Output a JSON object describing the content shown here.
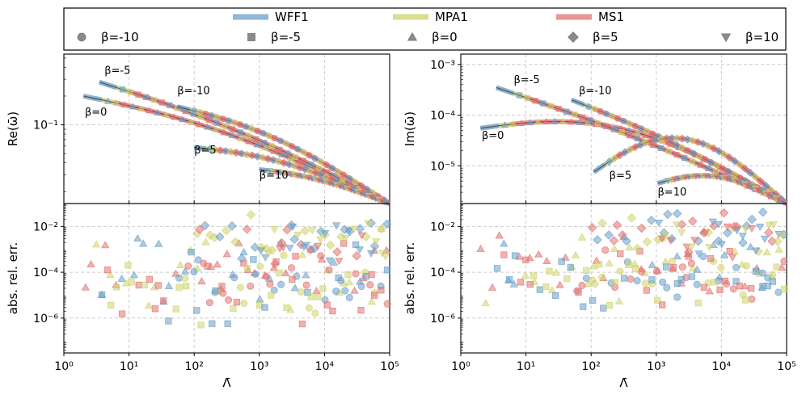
{
  "colors": {
    "WFF1": "#6a9fc9",
    "MPA1": "#cfd36c",
    "MS1": "#e07270",
    "fit": "#555555",
    "marker_gray": "#777777"
  },
  "legend": {
    "eos": [
      {
        "label": "WFF1",
        "key": "WFF1"
      },
      {
        "label": "MPA1",
        "key": "MPA1"
      },
      {
        "label": "MS1",
        "key": "MS1"
      }
    ],
    "beta": [
      {
        "label": "β=-10",
        "marker": "circle"
      },
      {
        "label": "β=-5",
        "marker": "square"
      },
      {
        "label": "β=0",
        "marker": "triangle-up"
      },
      {
        "label": "β=5",
        "marker": "diamond"
      },
      {
        "label": "β=10",
        "marker": "triangle-down"
      }
    ]
  },
  "chart_data": [
    {
      "panel": "top-left",
      "type": "line",
      "ylabel": "Re(ω̄)",
      "yscale": "log",
      "xscale": "log",
      "xlim": [
        1,
        100000
      ],
      "ylim": [
        0.015,
        0.55
      ],
      "yticks": [
        {
          "value": 0.1,
          "label": "10⁻¹"
        }
      ],
      "series": [
        {
          "name": "β=0",
          "label": "β=0",
          "label_at": [
            2.1,
            0.125
          ],
          "x0": 2,
          "x1": 100000,
          "y0": 0.2,
          "y1": 0.015,
          "arc": 0.15
        },
        {
          "name": "β=-5",
          "label": "β=-5",
          "label_at": [
            4.2,
            0.34
          ],
          "x0": 3.5,
          "x1": 100000,
          "y0": 0.28,
          "y1": 0.015,
          "arc": 0.1
        },
        {
          "name": "β=-10",
          "label": "β=-10",
          "label_at": [
            55,
            0.21
          ],
          "x0": 55,
          "x1": 100000,
          "y0": 0.155,
          "y1": 0.015,
          "arc": 0.15
        },
        {
          "name": "β=5",
          "label": "β=5",
          "label_at": [
            100,
            0.05
          ],
          "x0": 100,
          "x1": 100000,
          "y0": 0.058,
          "y1": 0.015,
          "arc": 0.12
        },
        {
          "name": "β=10",
          "label": "β=10",
          "label_at": [
            1000,
            0.0275
          ],
          "x0": 1000,
          "x1": 100000,
          "y0": 0.034,
          "y1": 0.015,
          "arc": 0.06
        }
      ]
    },
    {
      "panel": "top-right",
      "type": "line",
      "ylabel": "Im(ω̄)",
      "yscale": "log",
      "xscale": "log",
      "xlim": [
        1,
        100000
      ],
      "ylim": [
        1.8e-06,
        0.0016
      ],
      "yticks": [
        {
          "value": 1e-05,
          "label": "10⁻⁵"
        },
        {
          "value": 0.0001,
          "label": "10⁻⁴"
        },
        {
          "value": 0.001,
          "label": "10⁻³"
        }
      ],
      "series": [
        {
          "name": "β=0",
          "label": "β=0",
          "label_at": [
            2.1,
            3.4e-05
          ],
          "x0": 2,
          "x1": 100000,
          "y0": 5.5e-05,
          "y1": 1.8e-06,
          "arc": 0.75
        },
        {
          "name": "β=-5",
          "label": "β=-5",
          "label_at": [
            6.5,
            0.00043
          ],
          "x0": 3.5,
          "x1": 100000,
          "y0": 0.00035,
          "y1": 1.8e-06,
          "arc": 0.12
        },
        {
          "name": "β=-10",
          "label": "β=-10",
          "label_at": [
            65,
            0.00026
          ],
          "x0": 50,
          "x1": 100000,
          "y0": 0.0002,
          "y1": 1.8e-06,
          "arc": 0.12
        },
        {
          "name": "β=5",
          "label": "β=5",
          "label_at": [
            190,
            5.5e-06
          ],
          "x0": 110,
          "x1": 100000,
          "y0": 7.5e-06,
          "y1": 1.8e-06,
          "arc": 1.05
        },
        {
          "name": "β=10",
          "label": "β=10",
          "label_at": [
            1050,
            2.6e-06
          ],
          "x0": 1050,
          "x1": 100000,
          "y0": 4.5e-06,
          "y1": 1.8e-06,
          "arc": 0.35
        }
      ]
    },
    {
      "panel": "bottom-left",
      "type": "scatter",
      "ylabel": "abs. rel. err.",
      "xlabel": "Λ̄",
      "yscale": "log",
      "xscale": "log",
      "xlim": [
        1,
        100000
      ],
      "ylim": [
        3e-08,
        0.1
      ],
      "yticks": [
        {
          "value": 1e-06,
          "label": "10⁻⁶"
        },
        {
          "value": 0.0001,
          "label": "10⁻⁴"
        },
        {
          "value": 0.01,
          "label": "10⁻²"
        }
      ],
      "xticks": [
        {
          "value": 1,
          "label": "10⁰"
        },
        {
          "value": 10,
          "label": "10¹"
        },
        {
          "value": 100,
          "label": "10²"
        },
        {
          "value": 1000,
          "label": "10³"
        },
        {
          "value": 10000,
          "label": "10⁴"
        },
        {
          "value": 100000,
          "label": "10⁵"
        }
      ],
      "clusters": [
        {
          "marker": "triangle-up",
          "x0": 2,
          "x1": 100000,
          "ymid": 0.0001,
          "spread": 1.5
        },
        {
          "marker": "circle",
          "x0": 55,
          "x1": 100000,
          "ymid": 3e-05,
          "spread": 1.0
        },
        {
          "marker": "square",
          "x0": 3.5,
          "x1": 100000,
          "ymid": 3e-05,
          "spread": 1.3
        },
        {
          "marker": "diamond",
          "x0": 100,
          "x1": 100000,
          "ymid": 0.003,
          "spread": 0.8
        },
        {
          "marker": "triangle-down",
          "x0": 1000,
          "x1": 100000,
          "ymid": 0.002,
          "spread": 0.9
        }
      ]
    },
    {
      "panel": "bottom-right",
      "type": "scatter",
      "ylabel": "abs. rel. err.",
      "xlabel": "Λ̄",
      "yscale": "log",
      "xscale": "log",
      "xlim": [
        1,
        100000
      ],
      "ylim": [
        3e-08,
        0.1
      ],
      "yticks": [
        {
          "value": 1e-06,
          "label": "10⁻⁶"
        },
        {
          "value": 0.0001,
          "label": "10⁻⁴"
        },
        {
          "value": 0.01,
          "label": "10⁻²"
        }
      ],
      "xticks": [
        {
          "value": 1,
          "label": "10⁰"
        },
        {
          "value": 10,
          "label": "10¹"
        },
        {
          "value": 100,
          "label": "10²"
        },
        {
          "value": 1000,
          "label": "10³"
        },
        {
          "value": 10000,
          "label": "10⁴"
        },
        {
          "value": 100000,
          "label": "10⁵"
        }
      ],
      "clusters": [
        {
          "marker": "triangle-up",
          "x0": 2,
          "x1": 100000,
          "ymid": 0.0002,
          "spread": 1.3
        },
        {
          "marker": "circle",
          "x0": 55,
          "x1": 100000,
          "ymid": 8e-05,
          "spread": 0.8
        },
        {
          "marker": "square",
          "x0": 3.5,
          "x1": 100000,
          "ymid": 6e-05,
          "spread": 1.1
        },
        {
          "marker": "diamond",
          "x0": 100,
          "x1": 100000,
          "ymid": 0.006,
          "spread": 0.7
        },
        {
          "marker": "triangle-down",
          "x0": 1000,
          "x1": 100000,
          "ymid": 0.004,
          "spread": 0.8
        }
      ]
    }
  ]
}
